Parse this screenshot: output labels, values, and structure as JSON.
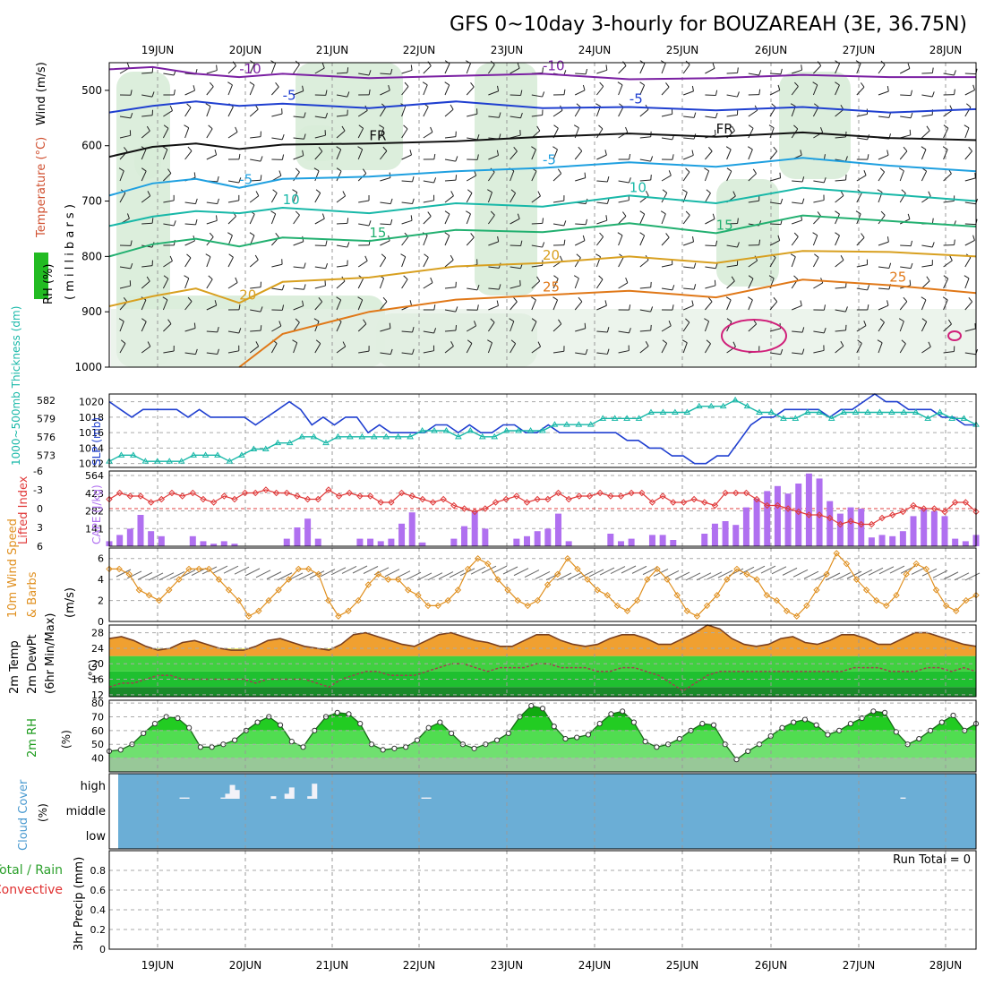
{
  "title": "GFS 0~10day 3-hourly for BOUZAREAH (3E, 36.75N)",
  "dates": [
    "19JUN",
    "20JUN",
    "21JUN",
    "22JUN",
    "23JUN",
    "24JUN",
    "25JUN",
    "26JUN",
    "27JUN",
    "28JUN"
  ],
  "colors": {
    "purple": "#7a1fa2",
    "blue": "#1f3fd0",
    "black": "#111111",
    "cyan": "#1fa0e0",
    "teal": "#18b8a8",
    "green": "#22b070",
    "gold": "#d8a020",
    "orange": "#e07818",
    "magenta": "#d0207a",
    "rhfill": "#d8ecd8",
    "cloud": "#6baed6",
    "precipLabelGreen": "#2ca02c",
    "precipLabelRed": "#e03030"
  },
  "chart_data": [
    {
      "type": "contour",
      "name": "upper-air",
      "ylabel_rh": "RH (%)",
      "ylabel_temp": "Temperature (°C)",
      "ylabel_wind": "Wind (m/s)",
      "ylabel_mb": "( m i l l i b a r s )",
      "y_ticks": [
        "500",
        "600",
        "700",
        "800",
        "900",
        "1000"
      ],
      "ylim": [
        450,
        1000
      ],
      "temp_lines": [
        {
          "label": "-10",
          "color_key": "purple",
          "x_frac": [
            0,
            0.05,
            0.1,
            0.15,
            0.2,
            0.3,
            0.4,
            0.5,
            0.6,
            0.7,
            0.8,
            0.9,
            1
          ],
          "p": [
            462,
            458,
            470,
            476,
            470,
            478,
            474,
            470,
            480,
            478,
            472,
            476,
            476
          ]
        },
        {
          "label": "-5",
          "color_key": "blue",
          "x_frac": [
            0,
            0.05,
            0.1,
            0.15,
            0.2,
            0.3,
            0.4,
            0.5,
            0.6,
            0.7,
            0.8,
            0.9,
            1
          ],
          "p": [
            540,
            528,
            520,
            528,
            524,
            532,
            520,
            532,
            530,
            536,
            530,
            540,
            534
          ]
        },
        {
          "label": "FR",
          "color_key": "black",
          "x_frac": [
            0,
            0.05,
            0.1,
            0.15,
            0.2,
            0.3,
            0.4,
            0.5,
            0.6,
            0.7,
            0.8,
            0.9,
            1
          ],
          "p": [
            620,
            602,
            596,
            606,
            598,
            596,
            592,
            584,
            578,
            584,
            576,
            586,
            590
          ]
        },
        {
          "label": "-5",
          "color_key": "cyan",
          "x_frac": [
            0,
            0.05,
            0.1,
            0.15,
            0.2,
            0.3,
            0.4,
            0.5,
            0.6,
            0.7,
            0.8,
            0.9,
            1
          ],
          "p": [
            690,
            668,
            660,
            676,
            660,
            656,
            646,
            640,
            630,
            638,
            622,
            636,
            646
          ]
        },
        {
          "label": "10",
          "color_key": "teal",
          "x_frac": [
            0,
            0.05,
            0.1,
            0.15,
            0.2,
            0.3,
            0.4,
            0.5,
            0.6,
            0.7,
            0.8,
            0.9,
            1
          ],
          "p": [
            745,
            728,
            718,
            722,
            712,
            722,
            704,
            710,
            690,
            704,
            676,
            688,
            700
          ]
        },
        {
          "label": "15",
          "color_key": "green",
          "x_frac": [
            0,
            0.05,
            0.1,
            0.15,
            0.2,
            0.3,
            0.4,
            0.5,
            0.6,
            0.7,
            0.8,
            0.9,
            1
          ],
          "p": [
            800,
            778,
            768,
            782,
            766,
            772,
            752,
            756,
            740,
            758,
            726,
            736,
            746
          ]
        },
        {
          "label": "20",
          "color_key": "gold",
          "x_frac": [
            0,
            0.05,
            0.1,
            0.15,
            0.2,
            0.3,
            0.4,
            0.5,
            0.6,
            0.7,
            0.8,
            0.9,
            1
          ],
          "p": [
            890,
            872,
            858,
            884,
            846,
            838,
            818,
            812,
            800,
            812,
            790,
            792,
            800
          ]
        },
        {
          "label": "25",
          "color_key": "orange",
          "x_frac": [
            0.15,
            0.2,
            0.3,
            0.4,
            0.5,
            0.6,
            0.7,
            0.8,
            0.9,
            1
          ],
          "p": [
            1000,
            940,
            900,
            878,
            870,
            862,
            874,
            842,
            852,
            866
          ]
        }
      ]
    },
    {
      "type": "line",
      "name": "slp-thickness",
      "ylabel_slp": "SLP (mb)",
      "ylabel_thick": "1000~500mb Thickness (dm)",
      "slp_ticks": [
        "1020",
        "1018",
        "1016",
        "1014",
        "1012"
      ],
      "thick_ticks": [
        "582",
        "579",
        "576",
        "573"
      ],
      "slp_range": [
        1011.5,
        1021
      ],
      "slp": [
        1020,
        1019,
        1018,
        1019,
        1019,
        1019,
        1019,
        1018,
        1019,
        1018,
        1018,
        1018,
        1018,
        1017,
        1018,
        1019,
        1020,
        1019,
        1017,
        1018,
        1017,
        1018,
        1018,
        1016,
        1017,
        1016,
        1016,
        1016,
        1016,
        1017,
        1017,
        1016,
        1017,
        1016,
        1016,
        1017,
        1017,
        1016,
        1016,
        1017,
        1016,
        1016,
        1016,
        1016,
        1016,
        1016,
        1015,
        1015,
        1014,
        1014,
        1013,
        1013,
        1012,
        1012,
        1013,
        1013,
        1015,
        1017,
        1018,
        1018,
        1019,
        1019,
        1019,
        1019,
        1018,
        1019,
        1019,
        1020,
        1021,
        1020,
        1020,
        1019,
        1019,
        1019,
        1018,
        1018,
        1017,
        1017
      ],
      "thickness": [
        572,
        573,
        573,
        572,
        572,
        572,
        572,
        573,
        573,
        573,
        572,
        573,
        574,
        574,
        575,
        575,
        576,
        576,
        575,
        576,
        576,
        576,
        576,
        576,
        576,
        576,
        577,
        577,
        577,
        576,
        577,
        576,
        576,
        577,
        577,
        577,
        577,
        578,
        578,
        578,
        578,
        579,
        579,
        579,
        579,
        580,
        580,
        580,
        580,
        581,
        581,
        581,
        582,
        581,
        580,
        580,
        579,
        579,
        580,
        580,
        579,
        580,
        580,
        580,
        580,
        580,
        580,
        580,
        579,
        580,
        579,
        579,
        578
      ]
    },
    {
      "type": "bar",
      "name": "cape-li",
      "ylabel_cape": "CAPE (J/kg)",
      "ylabel_li": "Lifted Index",
      "cape_ticks": [
        "564",
        "423",
        "282",
        "141"
      ],
      "li_ticks": [
        "-6",
        "-3",
        "0",
        "3",
        "6"
      ],
      "cape": [
        40,
        90,
        140,
        250,
        120,
        80,
        0,
        0,
        80,
        40,
        20,
        40,
        20,
        0,
        0,
        0,
        0,
        60,
        150,
        220,
        60,
        0,
        0,
        0,
        60,
        60,
        40,
        60,
        180,
        270,
        30,
        0,
        0,
        60,
        160,
        280,
        140,
        0,
        0,
        60,
        80,
        120,
        140,
        260,
        40,
        0,
        0,
        0,
        100,
        40,
        60,
        0,
        90,
        90,
        50,
        0,
        0,
        100,
        180,
        200,
        170,
        310,
        380,
        440,
        480,
        420,
        500,
        580,
        540,
        360,
        260,
        310,
        300,
        70,
        90,
        80,
        120,
        240,
        300,
        280,
        240,
        60,
        40,
        90
      ],
      "li": [
        -1.5,
        -2.5,
        -2,
        -2,
        -1,
        -1.5,
        -2.5,
        -2,
        -2.5,
        -1.5,
        -1,
        -2,
        -1.5,
        -2.5,
        -2.5,
        -3,
        -2.5,
        -2.5,
        -2,
        -1.5,
        -1.5,
        -3,
        -2,
        -2.5,
        -2,
        -2,
        -1,
        -1,
        -2.5,
        -2,
        -1.5,
        -1,
        -1.5,
        -0.5,
        0,
        0.5,
        0,
        -1,
        -1.5,
        -2,
        -1,
        -1.5,
        -1.5,
        -2.5,
        -1.5,
        -2,
        -2,
        -2.5,
        -2,
        -2,
        -2.5,
        -2.5,
        -1,
        -2,
        -1,
        -1,
        -1.5,
        -1,
        -0.5,
        -2.5,
        -2.5,
        -2.5,
        -1.5,
        -0.5,
        -0.5,
        0,
        0.5,
        1,
        1,
        1.5,
        2.5,
        2,
        2.5,
        2.5,
        1.5,
        1,
        0.5,
        -0.5,
        0,
        0,
        0.5,
        -1,
        -1,
        0.5
      ]
    },
    {
      "type": "line",
      "name": "wind10m",
      "ylabel_speed": "10m Wind Speed",
      "ylabel_barbs": "& Barbs",
      "ylabel_unit": "(m/s)",
      "y_ticks": [
        "6",
        "4",
        "2",
        "0"
      ],
      "ylim": [
        0,
        7
      ],
      "speed": [
        5,
        5,
        4.5,
        3,
        2.5,
        2,
        3,
        4,
        5,
        5,
        5,
        4,
        3,
        2,
        0.5,
        1,
        2,
        3,
        4,
        5,
        5,
        4.5,
        2,
        0.5,
        1,
        2,
        3.5,
        4.5,
        4,
        4,
        3,
        2.5,
        1.5,
        1.5,
        2,
        3,
        5,
        6,
        5.5,
        4,
        3,
        2,
        1.5,
        2,
        3.5,
        4.5,
        6,
        5,
        4,
        3,
        2.5,
        1.5,
        1,
        2,
        4,
        5,
        4,
        2.5,
        1,
        0.5,
        1.5,
        2.5,
        4,
        5,
        4.5,
        4,
        2.5,
        2,
        1,
        0.5,
        1.5,
        3,
        4.5,
        6.5,
        5.5,
        4,
        3,
        2,
        1.5,
        2.5,
        4.5,
        5.5,
        5,
        3,
        1.5,
        1,
        2,
        2.5
      ]
    },
    {
      "type": "area",
      "name": "temp2m",
      "ylabel_1": "2m Temp",
      "ylabel_2": "2m DewPt",
      "ylabel_3": "(6hr Min/Max)",
      "ylabel_unit": "(°C)",
      "y_ticks": [
        "28",
        "24",
        "20",
        "16",
        "12"
      ],
      "ylim": [
        11.5,
        30
      ],
      "temp": [
        26.5,
        27,
        26,
        24.5,
        23.5,
        24,
        25.5,
        26,
        25,
        24,
        23.5,
        23.5,
        24.5,
        26,
        26.5,
        25.5,
        24.5,
        24,
        23.5,
        25,
        27.5,
        28,
        27,
        26,
        25,
        24.5,
        26,
        27.5,
        28,
        27,
        26,
        25.5,
        24.5,
        24.5,
        26,
        27.5,
        27.5,
        26,
        25,
        24.5,
        25,
        26.5,
        27.5,
        27.5,
        26.5,
        25,
        25,
        26.5,
        28,
        30,
        29,
        26.5,
        25,
        24.5,
        25,
        26.5,
        27,
        25.5,
        25,
        26,
        27.5,
        27.5,
        26.5,
        25,
        25,
        26.5,
        28,
        28,
        27,
        26,
        25,
        24.5
      ],
      "dew": [
        14,
        15,
        15,
        16,
        17,
        17,
        16,
        16,
        16,
        16,
        16,
        16,
        15,
        16,
        16,
        16,
        16,
        15,
        14,
        16,
        17,
        18,
        18,
        17,
        17,
        17,
        18,
        19,
        20,
        20,
        19,
        18,
        19,
        19,
        19,
        20,
        20,
        19,
        19,
        19,
        18,
        18,
        19,
        19,
        18,
        17,
        15,
        13,
        15,
        17,
        18,
        18,
        18,
        18,
        18,
        18,
        18,
        18,
        18,
        18,
        18,
        19,
        19,
        19,
        18,
        18,
        18,
        19,
        19,
        18,
        19,
        18
      ]
    },
    {
      "type": "area",
      "name": "rh2m",
      "ylabel": "2m RH",
      "ylabel_unit": "(%)",
      "y_ticks": [
        "80",
        "70",
        "60",
        "50",
        "40"
      ],
      "ylim": [
        30,
        82
      ],
      "rh": [
        45,
        46,
        50,
        58,
        65,
        70,
        69,
        62,
        48,
        48,
        50,
        53,
        60,
        66,
        70,
        64,
        52,
        48,
        60,
        70,
        73,
        72,
        65,
        50,
        46,
        47,
        48,
        53,
        62,
        66,
        58,
        50,
        47,
        50,
        53,
        58,
        70,
        78,
        76,
        63,
        54,
        55,
        57,
        65,
        72,
        74,
        66,
        52,
        48,
        50,
        54,
        60,
        65,
        64,
        50,
        39,
        45,
        50,
        56,
        62,
        66,
        68,
        64,
        57,
        60,
        65,
        69,
        74,
        73,
        59,
        50,
        54,
        60,
        66,
        71,
        60,
        65
      ]
    },
    {
      "type": "bar",
      "name": "cloud",
      "ylabel": "Cloud Cover",
      "ylabel_unit": "(%)",
      "levels": [
        "high",
        "middle",
        "low"
      ],
      "high": [
        0,
        0,
        0,
        0,
        0,
        0,
        0,
        0,
        0,
        0,
        0,
        0,
        0,
        0,
        0,
        0,
        5,
        5,
        0,
        0,
        0,
        0,
        0,
        0,
        0,
        5,
        20,
        55,
        35,
        0,
        0,
        0,
        0,
        0,
        0,
        0,
        10,
        0,
        0,
        20,
        45,
        0,
        0,
        0,
        10,
        60,
        0,
        0,
        0,
        0,
        0,
        0,
        0,
        0,
        0,
        0,
        0,
        0,
        0,
        0,
        0,
        0,
        0,
        0,
        0,
        0,
        0,
        0,
        0,
        5,
        5,
        0,
        0,
        0,
        0,
        0,
        0,
        0,
        0,
        0,
        0,
        0,
        0,
        0,
        0,
        0,
        0,
        0,
        0,
        0,
        0,
        0,
        0,
        0,
        0,
        0,
        0,
        0,
        0,
        0,
        0,
        0,
        0,
        0,
        0,
        0,
        0,
        0,
        0,
        0,
        0,
        0,
        0,
        0,
        0,
        0,
        0,
        0,
        0,
        0,
        0,
        0,
        0,
        0,
        0,
        0,
        0,
        0,
        0,
        0,
        0,
        0,
        0,
        0,
        0,
        0,
        0,
        0,
        0,
        0,
        0,
        0,
        0,
        0,
        0,
        0,
        0,
        0,
        0,
        0,
        0,
        0,
        0,
        0,
        0,
        0,
        0,
        0,
        0,
        0,
        0,
        0,
        0,
        0,
        0,
        0,
        0,
        0,
        0,
        0,
        0,
        0,
        0,
        0,
        5,
        0,
        0,
        0,
        0,
        0,
        0,
        0,
        0,
        0,
        0,
        0,
        0,
        0,
        0,
        0,
        0
      ]
    },
    {
      "type": "bar",
      "name": "precip",
      "ylabel": "3hr Precip (mm)",
      "legend_total": "Total / Rain",
      "legend_conv": "Convective",
      "run_total": "Run Total = 0",
      "y_ticks": [
        "0.8",
        "0.6",
        "0.4",
        "0.2",
        "0"
      ],
      "ylim": [
        0,
        1
      ],
      "values": []
    }
  ]
}
